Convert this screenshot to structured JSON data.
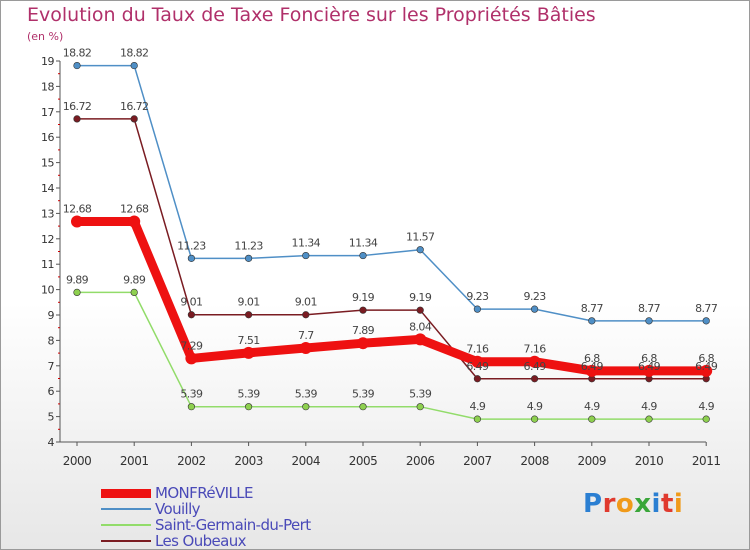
{
  "chart_data": {
    "type": "line",
    "title": "Evolution du Taux de Taxe Foncière sur les Propriétés Bâties",
    "unit_label": "(en %)",
    "x": [
      "2000",
      "2001",
      "2002",
      "2003",
      "2004",
      "2005",
      "2006",
      "2007",
      "2008",
      "2009",
      "2010",
      "2011"
    ],
    "ylim": [
      4,
      19
    ],
    "yticks": [
      "4",
      "5",
      "6",
      "7",
      "8",
      "9",
      "10",
      "11",
      "12",
      "13",
      "14",
      "15",
      "16",
      "17",
      "18",
      "19"
    ],
    "series": [
      {
        "name": "Vouilly",
        "color": "#4f8fc6",
        "fill": "#4f8fc6",
        "values": [
          18.82,
          18.82,
          11.23,
          11.23,
          11.34,
          11.34,
          11.57,
          9.23,
          9.23,
          8.77,
          8.77,
          8.77
        ],
        "labels": [
          "18.82",
          "18.82",
          "11.23",
          "11.23",
          "11.34",
          "11.34",
          "11.57",
          "9.23",
          "9.23",
          "8.77",
          "8.77",
          "8.77"
        ]
      },
      {
        "name": "Les Oubeaux",
        "color": "#7a1c22",
        "fill": "#7a1c22",
        "values": [
          16.72,
          16.72,
          9.01,
          9.01,
          9.01,
          9.19,
          9.19,
          6.49,
          6.49,
          6.49,
          6.49,
          6.49
        ],
        "labels": [
          "16.72",
          "16.72",
          "9.01",
          "9.01",
          "9.01",
          "9.19",
          "9.19",
          "6.49",
          "6.49",
          "6.49",
          "6.49",
          "6.49"
        ]
      },
      {
        "name": "Saint-Germain-du-Pert",
        "color": "#92dc6a",
        "fill": "#8ed04f",
        "values": [
          9.89,
          9.89,
          5.39,
          5.39,
          5.39,
          5.39,
          5.39,
          4.9,
          4.9,
          4.9,
          4.9,
          4.9
        ],
        "labels": [
          "9.89",
          "9.89",
          "5.39",
          "5.39",
          "5.39",
          "5.39",
          "5.39",
          "4.9",
          "4.9",
          "4.9",
          "4.9",
          "4.9"
        ]
      },
      {
        "name": "MONFRéVILLE",
        "color": "#ee1111",
        "fill": "#ee1111",
        "values": [
          12.68,
          12.68,
          7.29,
          7.51,
          7.7,
          7.89,
          8.04,
          7.16,
          7.16,
          6.8,
          6.8,
          6.8
        ],
        "labels": [
          "12.68",
          "12.68",
          "7.29",
          "7.51",
          "7.7",
          "7.89",
          "8.04",
          "7.16",
          "7.16",
          "6.8",
          "6.8",
          "6.8"
        ]
      }
    ]
  },
  "legend": [
    {
      "label": "MONFRéVILLE",
      "color": "#ee1111",
      "thickness": 9
    },
    {
      "label": "Vouilly",
      "color": "#4f8fc6",
      "thickness": 2
    },
    {
      "label": "Saint-Germain-du-Pert",
      "color": "#92dc6a",
      "thickness": 2
    },
    {
      "label": "Les Oubeaux",
      "color": "#7a1c22",
      "thickness": 2
    }
  ],
  "logo": {
    "text": "Proxiti",
    "letters": [
      {
        "ch": "P",
        "color": "#2b7fd2"
      },
      {
        "ch": "r",
        "color": "#e03a2e"
      },
      {
        "ch": "o",
        "color": "#f09a1a"
      },
      {
        "ch": "x",
        "color": "#3aa63a"
      },
      {
        "ch": "i",
        "color": "#2b7fd2"
      },
      {
        "ch": "t",
        "color": "#e03a2e"
      },
      {
        "ch": "i",
        "color": "#f09a1a"
      }
    ]
  }
}
